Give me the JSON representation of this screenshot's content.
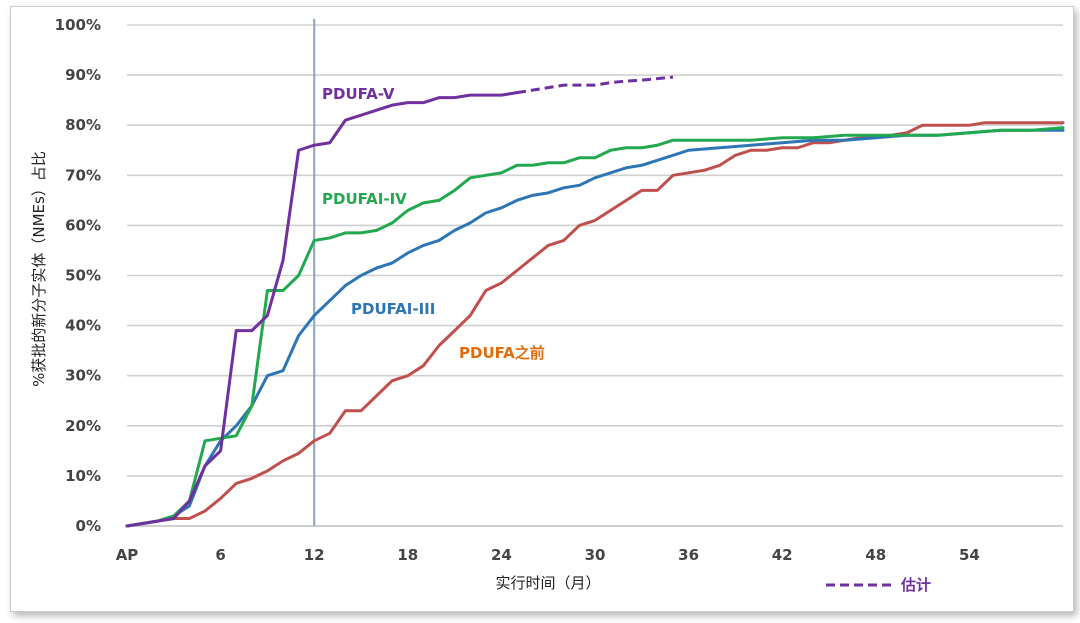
{
  "chart_data": {
    "type": "line",
    "title": "",
    "xlabel": "实行时间（月）",
    "ylabel": "%获批的新分子实体（NMEs）占比",
    "x_ticks": [
      "AP",
      "6",
      "12",
      "18",
      "24",
      "30",
      "36",
      "42",
      "48",
      "54"
    ],
    "y_ticks": [
      "0%",
      "10%",
      "20%",
      "30%",
      "40%",
      "50%",
      "60%",
      "70%",
      "80%",
      "90%",
      "100%"
    ],
    "xlim": [
      0,
      60
    ],
    "ylim": [
      0,
      100
    ],
    "grid": true,
    "reference_line": {
      "x": 12
    },
    "legend": {
      "label": "估计",
      "color": "#7030a0",
      "dashed": true
    },
    "series": [
      {
        "name": "PDUFA-V",
        "color": "#7030a0",
        "x": [
          0,
          1,
          2,
          3,
          4,
          5,
          6,
          7,
          8,
          9,
          10,
          11,
          12,
          13,
          14,
          15,
          16,
          17,
          18,
          19,
          20,
          21,
          22,
          23,
          24,
          25,
          26,
          27,
          28,
          29,
          30,
          31,
          32,
          33,
          34,
          35
        ],
        "values": [
          0,
          0.5,
          1,
          1.5,
          5,
          12,
          15,
          39,
          39,
          42,
          53,
          75,
          76,
          76.5,
          81,
          82,
          83,
          84,
          84.5,
          84.5,
          85.5,
          85.5,
          86,
          86,
          86,
          86.5,
          87,
          87.5,
          88,
          88,
          88,
          88.5,
          88.8,
          89,
          89.3,
          89.6
        ],
        "dashed_from_x": 25
      },
      {
        "name": "PDUFAI-IV",
        "color": "#22a84e",
        "x": [
          0,
          1,
          2,
          3,
          4,
          5,
          6,
          7,
          8,
          9,
          10,
          11,
          12,
          13,
          14,
          15,
          16,
          17,
          18,
          19,
          20,
          21,
          22,
          23,
          24,
          25,
          26,
          27,
          28,
          29,
          30,
          31,
          32,
          33,
          34,
          35,
          36,
          38,
          40,
          42,
          44,
          46,
          48,
          50,
          52,
          54,
          56,
          58,
          60
        ],
        "values": [
          0,
          0.5,
          1,
          2,
          5,
          17,
          17.5,
          18,
          24,
          47,
          47,
          50,
          57,
          57.5,
          58.5,
          58.5,
          59,
          60.5,
          63,
          64.5,
          65,
          67,
          69.5,
          70,
          70.5,
          72,
          72,
          72.5,
          72.5,
          73.5,
          73.5,
          75,
          75.5,
          75.5,
          76,
          77,
          77,
          77,
          77,
          77.5,
          77.5,
          78,
          78,
          78,
          78,
          78.5,
          79,
          79,
          79.5
        ]
      },
      {
        "name": "PDUFAI-III",
        "color": "#2e75b6",
        "x": [
          0,
          1,
          2,
          3,
          4,
          5,
          6,
          7,
          8,
          9,
          10,
          11,
          12,
          13,
          14,
          15,
          16,
          17,
          18,
          19,
          20,
          21,
          22,
          23,
          24,
          25,
          26,
          27,
          28,
          29,
          30,
          31,
          32,
          33,
          34,
          35,
          36,
          38,
          40,
          42,
          44,
          46,
          48,
          50,
          52,
          54,
          56,
          58,
          60
        ],
        "values": [
          0,
          0.5,
          1,
          2,
          4,
          12,
          17,
          20,
          24,
          30,
          31,
          38,
          42,
          45,
          48,
          50,
          51.5,
          52.5,
          54.5,
          56,
          57,
          59,
          60.5,
          62.5,
          63.5,
          65,
          66,
          66.5,
          67.5,
          68,
          69.5,
          70.5,
          71.5,
          72,
          73,
          74,
          75,
          75.5,
          76,
          76.5,
          77,
          77,
          77.5,
          78,
          78,
          78.5,
          79,
          79,
          79
        ]
      },
      {
        "name": "PDUFA之前",
        "color": "#c0504d",
        "x": [
          0,
          1,
          2,
          3,
          4,
          5,
          6,
          7,
          8,
          9,
          10,
          11,
          12,
          13,
          14,
          15,
          16,
          17,
          18,
          19,
          20,
          21,
          22,
          23,
          24,
          25,
          26,
          27,
          28,
          29,
          30,
          31,
          32,
          33,
          34,
          35,
          36,
          37,
          38,
          39,
          40,
          41,
          42,
          43,
          44,
          45,
          46,
          47,
          48,
          49,
          50,
          51,
          52,
          53,
          54,
          55,
          56,
          57,
          58,
          59,
          60
        ],
        "values": [
          0,
          0.5,
          1,
          1.5,
          1.5,
          3,
          5.5,
          8.5,
          9.5,
          11,
          13,
          14.5,
          17,
          18.5,
          23,
          23,
          26,
          29,
          30,
          32,
          36,
          39,
          42,
          47,
          48.5,
          51,
          53.5,
          56,
          57,
          60,
          61,
          63,
          65,
          67,
          67,
          70,
          70.5,
          71,
          72,
          74,
          75,
          75,
          75.5,
          75.5,
          76.5,
          76.5,
          77,
          77.5,
          77.5,
          78,
          78.5,
          80,
          80,
          80,
          80,
          80.5,
          80.5,
          80.5,
          80.5,
          80.5,
          80.5
        ]
      }
    ],
    "annotations": [
      {
        "text": "PDUFA-V",
        "color": "#7030a0"
      },
      {
        "text": "PDUFAI-IV",
        "color": "#22a84e"
      },
      {
        "text": "PDUFAI-III",
        "color": "#2e75b6"
      },
      {
        "text": "PDUFA之前",
        "color": "#e36c09"
      }
    ]
  }
}
